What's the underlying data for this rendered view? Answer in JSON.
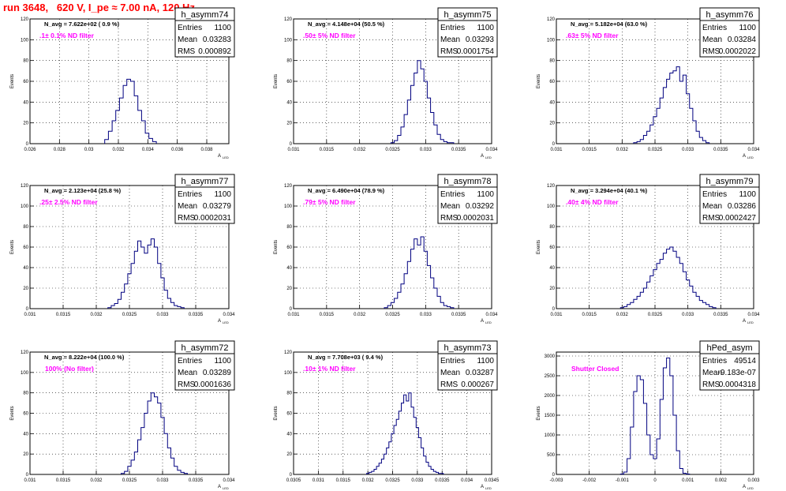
{
  "page": {
    "title": "run 3648,   620 V, I_pe ≈ 7.00 nA, 120 Hz"
  },
  "colors": {
    "title": "#ff0000",
    "annotation": "#ff00ff",
    "hist_line": "#000080",
    "grid": "#000000"
  },
  "axis_label_y": "Events",
  "axis_label_x_main": "A",
  "axis_label_x_sub": "LED",
  "chart_data": [
    {
      "type": "bar",
      "hist_name": "h_asymm74",
      "stats": {
        "entries": "1100",
        "mean": "0.03283",
        "rms": "0.000892"
      },
      "navg": "N_avg = 7.622e+02  ( 0.9 %)",
      "annotation": ".1± 0.1% ND filter",
      "xlim": [
        0.026,
        0.0395
      ],
      "ylim": [
        0,
        120
      ],
      "grid": true,
      "xticks": [
        0.026,
        0.028,
        0.03,
        0.032,
        0.034,
        0.036,
        0.038
      ],
      "xticklabels": [
        "0.026",
        "0.028",
        "0.03",
        "0.032",
        "0.034",
        "0.036",
        "0.038"
      ],
      "yticks": [
        0,
        20,
        40,
        60,
        80,
        100,
        120
      ],
      "binwidth": 0.00025,
      "x": [
        0.0312,
        0.03145,
        0.0317,
        0.03195,
        0.0322,
        0.03245,
        0.0327,
        0.03295,
        0.0332,
        0.03345,
        0.0337,
        0.03395,
        0.0342,
        0.03445
      ],
      "values": [
        4,
        12,
        22,
        32,
        44,
        56,
        62,
        60,
        46,
        32,
        22,
        10,
        5,
        2
      ]
    },
    {
      "type": "bar",
      "hist_name": "h_asymm75",
      "stats": {
        "entries": "1100",
        "mean": "0.03293",
        "rms": "0.0001754"
      },
      "navg": "N_avg = 4.148e+04 (50.5 %)",
      "annotation": ".50± 5% ND filter",
      "xlim": [
        0.031,
        0.034
      ],
      "ylim": [
        0,
        120
      ],
      "grid": true,
      "xticks": [
        0.031,
        0.0315,
        0.032,
        0.0325,
        0.033,
        0.0335,
        0.034
      ],
      "xticklabels": [
        "0.031",
        "0.0315",
        "0.032",
        "0.0325",
        "0.033",
        "0.0335",
        "0.034"
      ],
      "yticks": [
        0,
        20,
        40,
        60,
        80,
        100,
        120
      ],
      "binwidth": 5e-05,
      "x": [
        0.0325,
        0.03255,
        0.0326,
        0.03265,
        0.0327,
        0.03275,
        0.0328,
        0.03285,
        0.0329,
        0.03295,
        0.033,
        0.03305,
        0.0331,
        0.03315,
        0.0332,
        0.03325,
        0.0333,
        0.03335,
        0.0334
      ],
      "values": [
        1,
        3,
        8,
        16,
        28,
        42,
        56,
        68,
        80,
        72,
        60,
        44,
        30,
        18,
        9,
        4,
        2,
        1,
        1
      ]
    },
    {
      "type": "bar",
      "hist_name": "h_asymm76",
      "stats": {
        "entries": "1100",
        "mean": "0.03284",
        "rms": "0.0002022"
      },
      "navg": "N_avg = 5.182e+04 (63.0 %)",
      "annotation": ".63± 5% ND filter",
      "xlim": [
        0.031,
        0.034
      ],
      "ylim": [
        0,
        120
      ],
      "grid": true,
      "xticks": [
        0.031,
        0.0315,
        0.032,
        0.0325,
        0.033,
        0.0335,
        0.034
      ],
      "xticklabels": [
        "0.031",
        "0.0315",
        "0.032",
        "0.0325",
        "0.033",
        "0.0335",
        "0.034"
      ],
      "yticks": [
        0,
        20,
        40,
        60,
        80,
        100,
        120
      ],
      "binwidth": 5e-05,
      "x": [
        0.0322,
        0.03225,
        0.0323,
        0.03235,
        0.0324,
        0.03245,
        0.0325,
        0.03255,
        0.0326,
        0.03265,
        0.0327,
        0.03275,
        0.0328,
        0.03285,
        0.0329,
        0.03295,
        0.033,
        0.03305,
        0.0331,
        0.03315,
        0.0332,
        0.03325,
        0.0333
      ],
      "values": [
        1,
        2,
        4,
        8,
        12,
        18,
        26,
        34,
        44,
        54,
        62,
        68,
        70,
        74,
        60,
        66,
        48,
        34,
        22,
        12,
        6,
        3,
        1
      ]
    },
    {
      "type": "bar",
      "hist_name": "h_asymm77",
      "stats": {
        "entries": "1100",
        "mean": "0.03279",
        "rms": "0.0002031"
      },
      "navg": "N_avg = 2.123e+04 (25.8 %)",
      "annotation": ".25± 2.5% ND filter",
      "xlim": [
        0.031,
        0.034
      ],
      "ylim": [
        0,
        120
      ],
      "grid": true,
      "xticks": [
        0.031,
        0.0315,
        0.032,
        0.0325,
        0.033,
        0.0335,
        0.034
      ],
      "xticklabels": [
        "0.031",
        "0.0315",
        "0.032",
        "0.0325",
        "0.033",
        "0.0335",
        "0.034"
      ],
      "yticks": [
        0,
        20,
        40,
        60,
        80,
        100,
        120
      ],
      "binwidth": 5e-05,
      "x": [
        0.0322,
        0.03225,
        0.0323,
        0.03235,
        0.0324,
        0.03245,
        0.0325,
        0.03255,
        0.0326,
        0.03265,
        0.0327,
        0.03275,
        0.0328,
        0.03285,
        0.0329,
        0.03295,
        0.033,
        0.03305,
        0.0331,
        0.03315,
        0.0332,
        0.03325,
        0.0333
      ],
      "values": [
        1,
        3,
        5,
        9,
        16,
        24,
        34,
        44,
        56,
        66,
        60,
        54,
        62,
        68,
        60,
        44,
        30,
        18,
        10,
        6,
        3,
        2,
        1
      ]
    },
    {
      "type": "bar",
      "hist_name": "h_asymm78",
      "stats": {
        "entries": "1100",
        "mean": "0.03292",
        "rms": "0.0002031"
      },
      "navg": "N_avg = 6.490e+04 (78.9 %)",
      "annotation": ".79± 5% ND filter",
      "xlim": [
        0.031,
        0.034
      ],
      "ylim": [
        0,
        120
      ],
      "grid": true,
      "xticks": [
        0.031,
        0.0315,
        0.032,
        0.0325,
        0.033,
        0.0335,
        0.034
      ],
      "xticklabels": [
        "0.031",
        "0.0315",
        "0.032",
        "0.0325",
        "0.033",
        "0.0335",
        "0.034"
      ],
      "yticks": [
        0,
        20,
        40,
        60,
        80,
        100,
        120
      ],
      "binwidth": 5e-05,
      "x": [
        0.0324,
        0.03245,
        0.0325,
        0.03255,
        0.0326,
        0.03265,
        0.0327,
        0.03275,
        0.0328,
        0.03285,
        0.0329,
        0.03295,
        0.033,
        0.03305,
        0.0331,
        0.03315,
        0.0332,
        0.03325,
        0.0333,
        0.03335,
        0.0334
      ],
      "values": [
        1,
        3,
        6,
        10,
        16,
        24,
        34,
        46,
        58,
        68,
        62,
        70,
        56,
        42,
        30,
        20,
        12,
        6,
        3,
        2,
        1
      ]
    },
    {
      "type": "bar",
      "hist_name": "h_asymm79",
      "stats": {
        "entries": "1100",
        "mean": "0.03286",
        "rms": "0.0002427"
      },
      "navg": "N_avg = 3.294e+04 (40.1 %)",
      "annotation": ".40± 4% ND filter",
      "xlim": [
        0.031,
        0.034
      ],
      "ylim": [
        0,
        120
      ],
      "grid": true,
      "xticks": [
        0.031,
        0.0315,
        0.032,
        0.0325,
        0.033,
        0.0335,
        0.034
      ],
      "xticklabels": [
        "0.031",
        "0.0315",
        "0.032",
        "0.0325",
        "0.033",
        "0.0335",
        "0.034"
      ],
      "yticks": [
        0,
        20,
        40,
        60,
        80,
        100,
        120
      ],
      "binwidth": 5e-05,
      "x": [
        0.032,
        0.03205,
        0.0321,
        0.03215,
        0.0322,
        0.03225,
        0.0323,
        0.03235,
        0.0324,
        0.03245,
        0.0325,
        0.03255,
        0.0326,
        0.03265,
        0.0327,
        0.03275,
        0.0328,
        0.03285,
        0.0329,
        0.03295,
        0.033,
        0.03305,
        0.0331,
        0.03315,
        0.0332,
        0.03325,
        0.0333,
        0.03335,
        0.0334
      ],
      "values": [
        1,
        2,
        4,
        6,
        9,
        12,
        16,
        20,
        26,
        32,
        38,
        44,
        48,
        54,
        58,
        60,
        56,
        50,
        44,
        36,
        28,
        22,
        16,
        12,
        8,
        6,
        4,
        2,
        1
      ]
    },
    {
      "type": "bar",
      "hist_name": "h_asymm72",
      "stats": {
        "entries": "1100",
        "mean": "0.03289",
        "rms": "0.0001636"
      },
      "navg": "N_avg = 8.222e+04 (100.0 %)",
      "annotation": "100% (No filter)",
      "xlim": [
        0.031,
        0.034
      ],
      "ylim": [
        0,
        120
      ],
      "grid": true,
      "xticks": [
        0.031,
        0.0315,
        0.032,
        0.0325,
        0.033,
        0.0335,
        0.034
      ],
      "xticklabels": [
        "0.031",
        "0.0315",
        "0.032",
        "0.0325",
        "0.033",
        "0.0335",
        "0.034"
      ],
      "yticks": [
        0,
        20,
        40,
        60,
        80,
        100,
        120
      ],
      "binwidth": 5e-05,
      "x": [
        0.0324,
        0.03245,
        0.0325,
        0.03255,
        0.0326,
        0.03265,
        0.0327,
        0.03275,
        0.0328,
        0.03285,
        0.0329,
        0.03295,
        0.033,
        0.03305,
        0.0331,
        0.03315,
        0.0332,
        0.03325,
        0.0333,
        0.03335
      ],
      "values": [
        1,
        3,
        8,
        14,
        22,
        34,
        46,
        60,
        72,
        80,
        76,
        70,
        56,
        40,
        26,
        16,
        8,
        4,
        2,
        1
      ]
    },
    {
      "type": "bar",
      "hist_name": "h_asymm73",
      "stats": {
        "entries": "1100",
        "mean": "0.03287",
        "rms": "0.000267"
      },
      "navg": "N_avg = 7.708e+03 ( 9.4 %)",
      "annotation": ".10± 1% ND filter",
      "xlim": [
        0.0305,
        0.0345
      ],
      "ylim": [
        0,
        120
      ],
      "grid": true,
      "xticks": [
        0.0305,
        0.031,
        0.0315,
        0.032,
        0.0325,
        0.033,
        0.0335,
        0.034,
        0.0345
      ],
      "xticklabels": [
        "0.0305",
        "0.031",
        "0.0315",
        "0.032",
        "0.0325",
        "0.033",
        "0.0335",
        "0.034",
        "0.0345"
      ],
      "yticks": [
        0,
        20,
        40,
        60,
        80,
        100,
        120
      ],
      "binwidth": 5e-05,
      "x": [
        0.032,
        0.03205,
        0.0321,
        0.03215,
        0.0322,
        0.03225,
        0.0323,
        0.03235,
        0.0324,
        0.03245,
        0.0325,
        0.03255,
        0.0326,
        0.03265,
        0.0327,
        0.03275,
        0.0328,
        0.03285,
        0.0329,
        0.03295,
        0.033,
        0.03305,
        0.0331,
        0.03315,
        0.0332,
        0.03325,
        0.0333,
        0.03335,
        0.0334,
        0.03345,
        0.0335
      ],
      "values": [
        1,
        2,
        3,
        5,
        8,
        11,
        15,
        20,
        26,
        32,
        40,
        48,
        54,
        62,
        70,
        78,
        72,
        80,
        66,
        56,
        46,
        36,
        26,
        18,
        12,
        8,
        5,
        3,
        2,
        1,
        1
      ]
    },
    {
      "type": "bar",
      "hist_name": "hPed_asym",
      "stats": {
        "entries": "49514",
        "mean": "-9.183e-07",
        "rms": "0.0004318"
      },
      "navg": "",
      "annotation": "Shutter Closed",
      "xlim": [
        -0.003,
        0.003
      ],
      "ylim": [
        0,
        3100
      ],
      "grid": true,
      "xticks": [
        -0.003,
        -0.002,
        -0.001,
        0,
        0.001,
        0.002,
        0.003
      ],
      "xticklabels": [
        "-0.003",
        "-0.002",
        "-0.001",
        "0",
        "0.001",
        "0.002",
        "0.003"
      ],
      "yticks": [
        0,
        500,
        1000,
        1500,
        2000,
        2500,
        3000
      ],
      "binwidth": 0.0001,
      "x": [
        -0.001,
        -0.0009,
        -0.0008,
        -0.0007,
        -0.0006,
        -0.0005,
        -0.0004,
        -0.0003,
        -0.0002,
        -0.0001,
        0,
        0.0001,
        0.0002,
        0.0003,
        0.0004,
        0.0005,
        0.0006,
        0.0007,
        0.0008,
        0.0009,
        0.001
      ],
      "values": [
        10,
        60,
        400,
        1200,
        2100,
        2500,
        2400,
        1800,
        1000,
        500,
        400,
        900,
        1900,
        2700,
        2950,
        2500,
        1500,
        600,
        150,
        30,
        10
      ]
    }
  ]
}
